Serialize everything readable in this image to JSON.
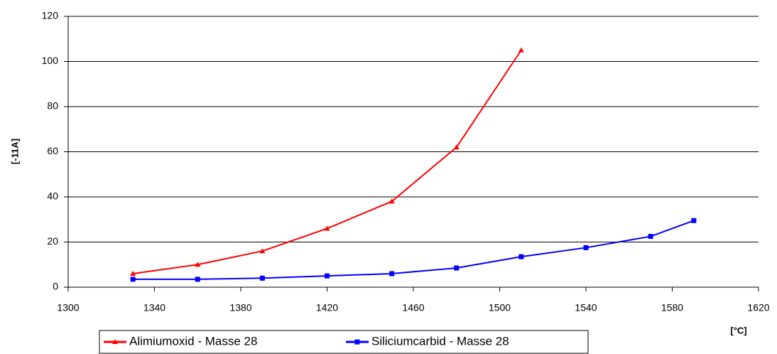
{
  "chart_data": {
    "type": "line",
    "x_label": "[°C]",
    "y_label": "[-11A]",
    "xlim": [
      1300,
      1620
    ],
    "xticks": [
      1300,
      1340,
      1380,
      1420,
      1460,
      1500,
      1540,
      1580,
      1620
    ],
    "ylim": [
      0,
      120
    ],
    "yticks": [
      0,
      20,
      40,
      60,
      80,
      100,
      120
    ],
    "grid": true,
    "legend": "bottom",
    "series": [
      {
        "name": "Alimiumoxid - Masse 28",
        "color": "#ff0000",
        "x": [
          1330,
          1360,
          1390,
          1420,
          1450,
          1480,
          1510
        ],
        "values": [
          6,
          10,
          16,
          26,
          38,
          62,
          105
        ]
      },
      {
        "name": "Siliciumcarbid - Masse 28",
        "color": "#0000ff",
        "x": [
          1330,
          1360,
          1390,
          1420,
          1450,
          1480,
          1510,
          1540,
          1570,
          1590
        ],
        "values": [
          3.5,
          3.5,
          4,
          5,
          6,
          8.5,
          13.5,
          17.5,
          22.5,
          29.5
        ]
      }
    ]
  }
}
